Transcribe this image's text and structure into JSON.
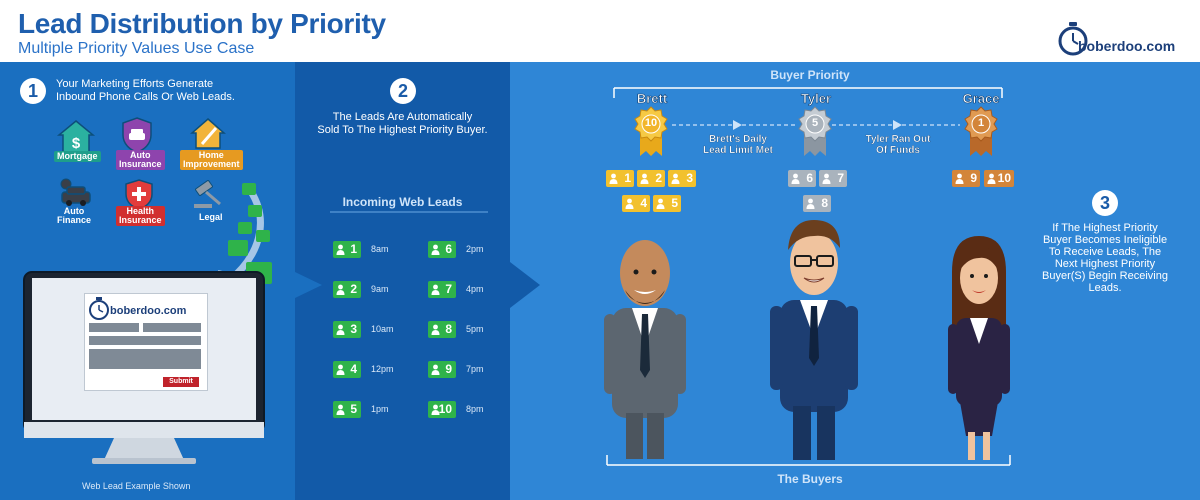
{
  "header": {
    "title": "Lead Distribution by Priority",
    "subtitle": "Multiple Priority Values Use Case",
    "logo_text": "boberdoo.com"
  },
  "step1": {
    "number": "1",
    "text_line1": "Your Marketing Efforts Generate",
    "text_line2": "Inbound Phone Calls Or Web Leads.",
    "categories": [
      "Mortgage",
      "Auto Insurance",
      "Home Improvement",
      "Auto Finance",
      "Health Insurance",
      "Legal"
    ],
    "monitor": {
      "logo_text": "boberdoo.com",
      "submit_label": "Submit",
      "caption": "Web Lead Example Shown"
    }
  },
  "step2": {
    "number": "2",
    "text_line1": "The Leads Are Automatically",
    "text_line2": "Sold To The Highest Priority Buyer.",
    "incoming_title": "Incoming Web Leads",
    "leads": [
      {
        "id": "1",
        "time": "8am"
      },
      {
        "id": "2",
        "time": "9am"
      },
      {
        "id": "3",
        "time": "10am"
      },
      {
        "id": "4",
        "time": "12pm"
      },
      {
        "id": "5",
        "time": "1pm"
      },
      {
        "id": "6",
        "time": "2pm"
      },
      {
        "id": "7",
        "time": "4pm"
      },
      {
        "id": "8",
        "time": "5pm"
      },
      {
        "id": "9",
        "time": "7pm"
      },
      {
        "id": "10",
        "time": "8pm"
      }
    ]
  },
  "step3": {
    "number": "3",
    "lines": [
      "If The Highest Priority",
      "Buyer Becomes Ineligible",
      "To Receive Leads, The",
      "Next Highest Priority",
      "Buyer(S) Begin Receiving",
      "Leads."
    ]
  },
  "buyers_section": {
    "top_label": "Buyer Priority",
    "bottom_label": "The Buyers",
    "note1_line1": "Brett's Daily",
    "note1_line2": "Lead Limit Met",
    "note2_line1": "Tyler Ran Out",
    "note2_line2": "Of Funds",
    "buyers": [
      {
        "name": "Brett",
        "priority": "10",
        "leads": [
          "1",
          "2",
          "3",
          "4",
          "5"
        ],
        "color": "#f2c12e"
      },
      {
        "name": "Tyler",
        "priority": "5",
        "leads": [
          "6",
          "7",
          "8"
        ],
        "color": "#a9b3bd"
      },
      {
        "name": "Grace",
        "priority": "1",
        "leads": [
          "9",
          "10"
        ],
        "color": "#d3853a"
      }
    ]
  },
  "colors": {
    "lead_green": "#2fb34a",
    "gold": "#f2c12e",
    "silver": "#a9b3bd",
    "bronze": "#d3853a"
  }
}
